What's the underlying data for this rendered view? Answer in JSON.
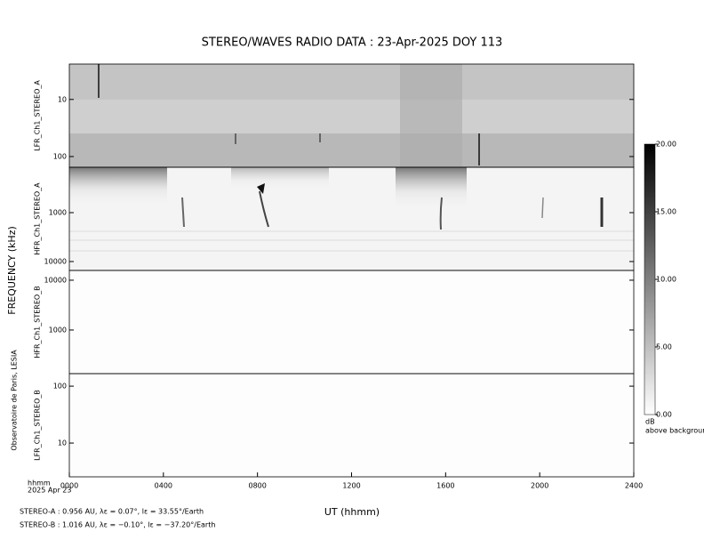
{
  "chart_data": {
    "type": "spectrogram",
    "title": "STEREO/WAVES  RADIO  DATA : 23-Apr-2025  DOY 113",
    "ylabel": "FREQUENCY (kHz)",
    "xlabel": "UT (hhmm)",
    "xlim": [
      0,
      2400
    ],
    "xticks": [
      {
        "value": 0,
        "label": "0000"
      },
      {
        "value": 400,
        "label": "0400"
      },
      {
        "value": 800,
        "label": "0800"
      },
      {
        "value": 1200,
        "label": "1200"
      },
      {
        "value": 1600,
        "label": "1600"
      },
      {
        "value": 2000,
        "label": "2000"
      },
      {
        "value": 2400,
        "label": "2400"
      }
    ],
    "x_unit_label": "hhmm",
    "date_label": "2025 Apr 23",
    "credit": "Observatoire de Paris, LESIA",
    "panels": [
      {
        "name": "LFR_Ch1_STEREO_A",
        "log": true,
        "ylim": [
          154,
          2.4
        ],
        "yticks": [
          10,
          100
        ]
      },
      {
        "name": "HFR_Ch1_STEREO_A",
        "log": true,
        "ylim": [
          15200,
          118
        ],
        "yticks": [
          1000,
          10000
        ]
      },
      {
        "name": "HFR_Ch1_STEREO_B",
        "log": true,
        "ylim": [
          133,
          15700
        ],
        "yticks": [
          1000,
          10000
        ]
      },
      {
        "name": "LFR_Ch1_STEREO_B",
        "log": true,
        "ylim": [
          2.55,
          166
        ],
        "yticks": [
          10,
          100
        ]
      }
    ],
    "colorbar": {
      "clim": [
        0,
        20
      ],
      "ticks": [
        {
          "value": 0,
          "label": "0.00"
        },
        {
          "value": 5,
          "label": "5.00"
        },
        {
          "value": 10,
          "label": "10.00"
        },
        {
          "value": 15,
          "label": "15.00"
        },
        {
          "value": 20,
          "label": "20.00"
        }
      ],
      "unit": "dB",
      "note": "above background"
    },
    "footnotes": [
      "STEREO-A : 0.956 AU, λε = 0.07°, lε = 33.55°/Earth",
      "STEREO-B : 1.016 AU, λε = −0.10°, lε = −37.20°/Earth"
    ]
  }
}
